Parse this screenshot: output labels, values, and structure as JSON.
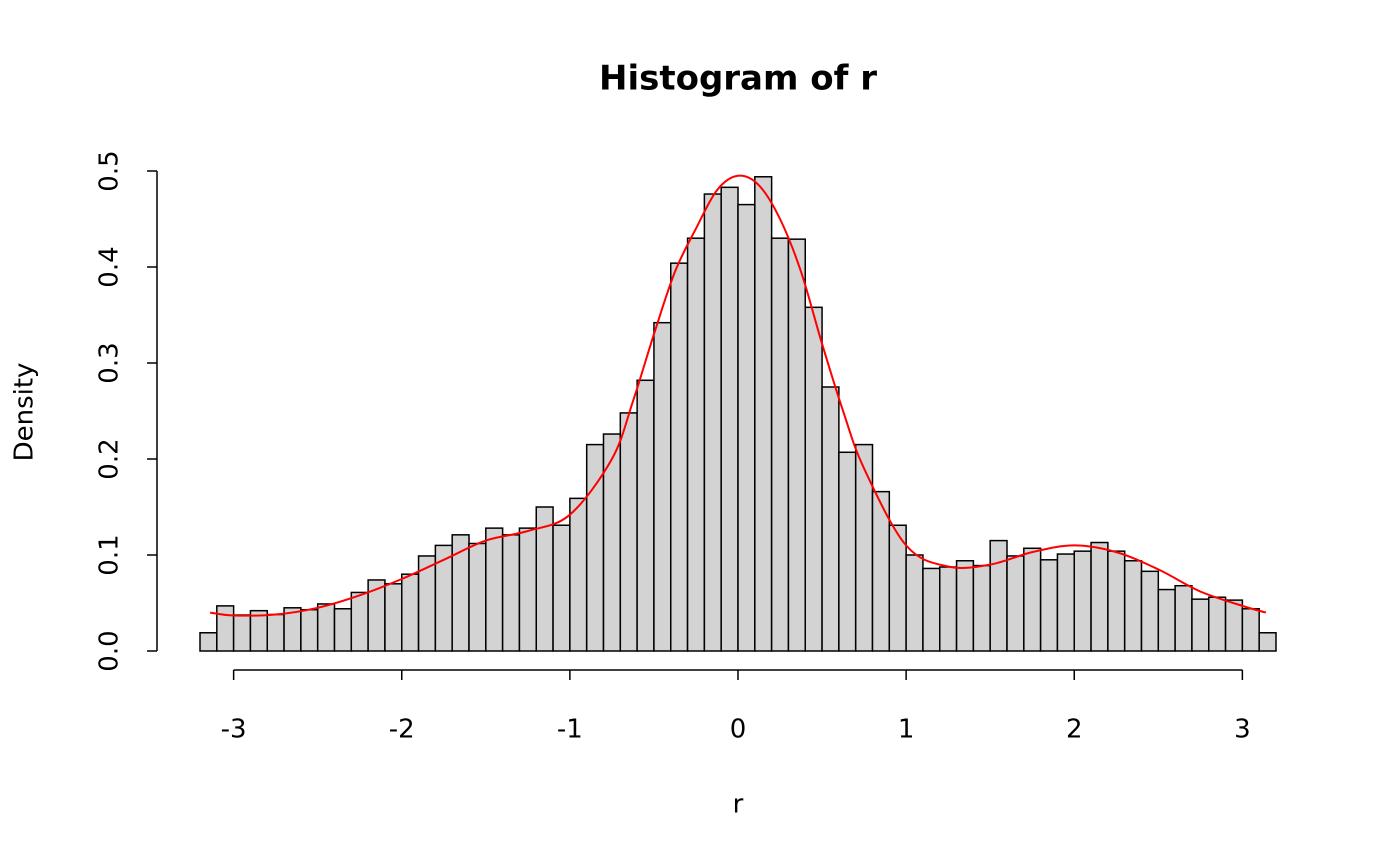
{
  "chart_data": {
    "type": "histogram",
    "title": "Histogram of r",
    "x_label": "r",
    "y_label": "Density",
    "bins": [
      -3.2,
      -3.1,
      -3.0,
      -2.9,
      -2.8,
      -2.7,
      -2.6,
      -2.5,
      -2.4,
      -2.3,
      -2.2,
      -2.1,
      -2.0,
      -1.9,
      -1.8,
      -1.7,
      -1.6,
      -1.5,
      -1.4,
      -1.3,
      -1.2,
      -1.1,
      -1.0,
      -0.9,
      -0.8,
      -0.7,
      -0.6,
      -0.5,
      -0.4,
      -0.3,
      -0.2,
      -0.1,
      0.0,
      0.1,
      0.2,
      0.3,
      0.4,
      0.5,
      0.6,
      0.7,
      0.8,
      0.9,
      1.0,
      1.1,
      1.2,
      1.3,
      1.4,
      1.5,
      1.6,
      1.7,
      1.8,
      1.9,
      2.0,
      2.1,
      2.2,
      2.3,
      2.4,
      2.5,
      2.6,
      2.7,
      2.8,
      2.9,
      3.0,
      3.1,
      3.2
    ],
    "values": [
      0.019,
      0.047,
      0.0375,
      0.042,
      0.038,
      0.045,
      0.043,
      0.049,
      0.044,
      0.061,
      0.074,
      0.07,
      0.08,
      0.099,
      0.11,
      0.121,
      0.112,
      0.128,
      0.121,
      0.128,
      0.15,
      0.131,
      0.159,
      0.215,
      0.226,
      0.248,
      0.282,
      0.342,
      0.404,
      0.43,
      0.476,
      0.483,
      0.465,
      0.494,
      0.43,
      0.429,
      0.358,
      0.275,
      0.207,
      0.215,
      0.166,
      0.131,
      0.1,
      0.086,
      0.0875,
      0.094,
      0.089,
      0.115,
      0.099,
      0.107,
      0.095,
      0.101,
      0.104,
      0.113,
      0.104,
      0.094,
      0.083,
      0.064,
      0.068,
      0.054,
      0.056,
      0.053,
      0.044,
      0.019
    ],
    "color": "#d3d3d3",
    "density_curve": {
      "color": "#ff0000",
      "x": [
        -3.14,
        -3.0,
        -2.75,
        -2.5,
        -2.25,
        -2.0,
        -1.75,
        -1.5,
        -1.25,
        -1.0,
        -0.75,
        -0.625,
        -0.5,
        -0.375,
        -0.25,
        -0.125,
        0.0,
        0.125,
        0.25,
        0.375,
        0.5,
        0.625,
        0.75,
        1.0,
        1.25,
        1.5,
        1.75,
        2.0,
        2.25,
        2.5,
        2.75,
        3.0,
        3.14
      ],
      "values": [
        0.04,
        0.037,
        0.038,
        0.045,
        0.058,
        0.075,
        0.095,
        0.115,
        0.125,
        0.142,
        0.2,
        0.26,
        0.33,
        0.395,
        0.44,
        0.48,
        0.495,
        0.485,
        0.45,
        0.395,
        0.32,
        0.25,
        0.19,
        0.11,
        0.088,
        0.09,
        0.103,
        0.11,
        0.103,
        0.085,
        0.062,
        0.047,
        0.04
      ]
    },
    "xlim": [
      -3.2,
      3.2
    ],
    "ylim": [
      0,
      0.5
    ],
    "xticks": [
      -3,
      -2,
      -1,
      0,
      1,
      2,
      3
    ],
    "yticks": [
      {
        "value": 0,
        "label": "0.0"
      },
      0.1,
      0.2,
      0.3,
      0.4,
      0.5
    ]
  }
}
